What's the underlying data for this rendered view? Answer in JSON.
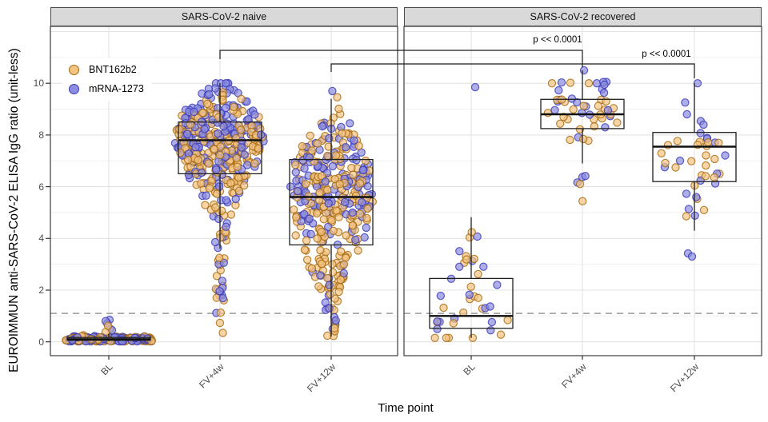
{
  "figure": {
    "y_axis": {
      "title": "EUROIMMUN anti-SARS-CoV-2 ELISA IgG ratio (unit-less)",
      "ticks": [
        "0",
        "2",
        "4",
        "6",
        "8",
        "10"
      ]
    },
    "x_axis": {
      "title": "Time point",
      "tick_labels": [
        "BL",
        "FV+4w",
        "FV+12w",
        "BL",
        "FV+4w",
        "FV+12w"
      ]
    },
    "legend": {
      "items": [
        {
          "label": "BNT162b2",
          "fill": "#F3C382",
          "stroke": "#A5690F"
        },
        {
          "label": "mRNA-1273",
          "fill": "#8C8CE0",
          "stroke": "#3A3AB5"
        }
      ]
    },
    "annotations": [
      {
        "text": "p << 0.0001"
      },
      {
        "text": "p << 0.0001"
      }
    ],
    "panel_titles": [
      "SARS-CoV-2 naive",
      "SARS-CoV-2 recovered"
    ]
  },
  "chart_data": {
    "type": "boxplot-beeswarm",
    "categories": [
      "BL",
      "FV+4w",
      "FV+12w"
    ],
    "xlabel": "Time point",
    "ylabel": "EUROIMMUN anti-SARS-CoV-2 ELISA IgG ratio (unit-less)",
    "ylim": [
      -0.5,
      12.2
    ],
    "yticks": [
      0,
      2,
      4,
      6,
      8,
      10
    ],
    "grid": "major-and-minor",
    "legend_position": "inside-top-left",
    "threshold_line": {
      "value": 1.1,
      "style": "dashed",
      "color": "#999999"
    },
    "significance": [
      {
        "text": "p << 0.0001",
        "category": "FV+4w",
        "from_panel": "SARS-CoV-2 naive",
        "to_panel": "SARS-CoV-2 recovered"
      },
      {
        "text": "p << 0.0001",
        "category": "FV+12w",
        "from_panel": "SARS-CoV-2 naive",
        "to_panel": "SARS-CoV-2 recovered"
      }
    ],
    "panels": [
      {
        "title": "SARS-CoV-2 naive",
        "groups": [
          {
            "category": "BL",
            "box": {
              "whisker_low": 0.02,
              "q1": 0.06,
              "median": 0.1,
              "q3": 0.17,
              "whisker_high": 0.3
            },
            "series": [
              {
                "name": "BNT162b2",
                "n": 150,
                "mix": [
                  {
                    "type": "normal",
                    "mean": 0.1,
                    "sd": 0.055,
                    "weight": 1.0
                  }
                ],
                "clamp": [
                  0.02,
                  0.3
                ]
              },
              {
                "name": "mRNA-1273",
                "n": 120,
                "mix": [
                  {
                    "type": "normal",
                    "mean": 0.1,
                    "sd": 0.055,
                    "weight": 1.0
                  }
                ],
                "clamp": [
                  0.02,
                  0.3
                ]
              }
            ],
            "extra_points": [
              {
                "value": 0.38,
                "series": "BNT162b2",
                "dx": -4
              },
              {
                "value": 0.5,
                "series": "BNT162b2",
                "dx": 2
              },
              {
                "value": 0.62,
                "series": "BNT162b2",
                "dx": -1
              },
              {
                "value": 0.45,
                "series": "mRNA-1273",
                "dx": 4
              },
              {
                "value": 0.72,
                "series": "mRNA-1273",
                "dx": -2
              },
              {
                "value": 0.8,
                "series": "mRNA-1273",
                "dx": -4
              },
              {
                "value": 0.85,
                "series": "mRNA-1273",
                "dx": 1
              }
            ],
            "swarm_width": [
              [
                0,
                55
              ],
              [
                0.3,
                50
              ],
              [
                0.35,
                10
              ],
              [
                0.9,
                5
              ]
            ]
          },
          {
            "category": "FV+4w",
            "box": {
              "whisker_low": 3.6,
              "q1": 6.5,
              "median": 7.8,
              "q3": 8.5,
              "whisker_high": 10.0
            },
            "series": [
              {
                "name": "BNT162b2",
                "n": 230,
                "mix": [
                  {
                    "type": "normal",
                    "mean": 7.55,
                    "sd": 0.9,
                    "weight": 0.8
                  },
                  {
                    "type": "normal",
                    "mean": 5.8,
                    "sd": 1.0,
                    "weight": 0.13
                  },
                  {
                    "type": "uniform",
                    "min": 0.3,
                    "max": 4.8,
                    "weight": 0.07
                  }
                ],
                "clamp": [
                  0.3,
                  10.0
                ]
              },
              {
                "name": "mRNA-1273",
                "n": 200,
                "mix": [
                  {
                    "type": "normal",
                    "mean": 8.1,
                    "sd": 0.95,
                    "weight": 0.84
                  },
                  {
                    "type": "normal",
                    "mean": 6.2,
                    "sd": 1.0,
                    "weight": 0.11
                  },
                  {
                    "type": "uniform",
                    "min": 0.85,
                    "max": 5.0,
                    "weight": 0.05
                  }
                ],
                "clamp": [
                  0.85,
                  10.0
                ]
              }
            ],
            "extra_points": [],
            "swarm_width": [
              [
                0.3,
                4
              ],
              [
                3,
                6
              ],
              [
                4.5,
                10
              ],
              [
                5.5,
                22
              ],
              [
                6.5,
                42
              ],
              [
                7.8,
                58
              ],
              [
                8.8,
                50
              ],
              [
                9.4,
                32
              ],
              [
                9.8,
                16
              ],
              [
                10,
                11
              ]
            ]
          },
          {
            "category": "FV+12w",
            "box": {
              "whisker_low": 0.2,
              "q1": 3.75,
              "median": 5.6,
              "q3": 7.05,
              "whisker_high": 9.4
            },
            "series": [
              {
                "name": "BNT162b2",
                "n": 235,
                "mix": [
                  {
                    "type": "normal",
                    "mean": 5.3,
                    "sd": 1.5,
                    "weight": 0.82
                  },
                  {
                    "type": "normal",
                    "mean": 7.4,
                    "sd": 0.7,
                    "weight": 0.08
                  },
                  {
                    "type": "uniform",
                    "min": 0.2,
                    "max": 2.8,
                    "weight": 0.1
                  }
                ],
                "clamp": [
                  0.1,
                  9.6
                ]
              },
              {
                "name": "mRNA-1273",
                "n": 150,
                "mix": [
                  {
                    "type": "normal",
                    "mean": 6.1,
                    "sd": 1.35,
                    "weight": 0.88
                  },
                  {
                    "type": "uniform",
                    "min": 0.5,
                    "max": 3.0,
                    "weight": 0.12
                  }
                ],
                "clamp": [
                  0.2,
                  9.7
                ]
              }
            ],
            "extra_points": [],
            "swarm_width": [
              [
                0.1,
                5
              ],
              [
                1,
                7
              ],
              [
                2,
                14
              ],
              [
                3,
                30
              ],
              [
                4,
                44
              ],
              [
                5,
                52
              ],
              [
                6,
                52
              ],
              [
                7,
                46
              ],
              [
                7.8,
                34
              ],
              [
                8.6,
                22
              ],
              [
                9.2,
                12
              ],
              [
                9.7,
                5
              ]
            ]
          }
        ]
      },
      {
        "title": "SARS-CoV-2 recovered",
        "groups": [
          {
            "category": "BL",
            "box": {
              "whisker_low": 0.15,
              "q1": 0.52,
              "median": 1.0,
              "q3": 2.45,
              "whisker_high": 4.82
            },
            "series": [
              {
                "name": "BNT162b2",
                "n": 22,
                "mix": [
                  {
                    "type": "normal",
                    "mean": 1.1,
                    "sd": 0.6,
                    "weight": 0.72
                  },
                  {
                    "type": "normal",
                    "mean": 3.1,
                    "sd": 0.7,
                    "weight": 0.28
                  }
                ],
                "clamp": [
                  0.15,
                  4.85
                ]
              },
              {
                "name": "mRNA-1273",
                "n": 17,
                "mix": [
                  {
                    "type": "normal",
                    "mean": 1.2,
                    "sd": 0.7,
                    "weight": 0.7
                  },
                  {
                    "type": "normal",
                    "mean": 3.5,
                    "sd": 0.7,
                    "weight": 0.3
                  }
                ],
                "clamp": [
                  0.2,
                  4.5
                ]
              }
            ],
            "extra_points": [
              {
                "value": 9.85,
                "series": "mRNA-1273",
                "dx": 5
              }
            ],
            "swarm_width": [
              [
                0.15,
                48
              ],
              [
                1,
                48
              ],
              [
                1.8,
                42
              ],
              [
                2.5,
                30
              ],
              [
                3,
                22
              ],
              [
                3.7,
                14
              ],
              [
                4.3,
                8
              ],
              [
                4.9,
                3
              ],
              [
                9.85,
                4
              ]
            ]
          },
          {
            "category": "FV+4w",
            "box": {
              "whisker_low": 6.9,
              "q1": 8.25,
              "median": 8.8,
              "q3": 9.38,
              "whisker_high": 10.5
            },
            "series": [
              {
                "name": "BNT162b2",
                "n": 26,
                "mix": [
                  {
                    "type": "normal",
                    "mean": 8.75,
                    "sd": 0.5,
                    "weight": 0.92
                  },
                  {
                    "type": "uniform",
                    "min": 4.6,
                    "max": 6.2,
                    "weight": 0.08
                  }
                ],
                "clamp": [
                  4.6,
                  10.05
                ]
              },
              {
                "name": "mRNA-1273",
                "n": 20,
                "mix": [
                  {
                    "type": "normal",
                    "mean": 8.95,
                    "sd": 0.6,
                    "weight": 0.9
                  },
                  {
                    "type": "uniform",
                    "min": 6.0,
                    "max": 7.3,
                    "weight": 0.1
                  }
                ],
                "clamp": [
                  6.0,
                  10.05
                ]
              }
            ],
            "extra_points": [
              {
                "value": 10.5,
                "series": "mRNA-1273",
                "dx": 2
              },
              {
                "value": 10.0,
                "series": "BNT162b2",
                "dx": -38
              },
              {
                "value": 10.02,
                "series": "BNT162b2",
                "dx": -15
              },
              {
                "value": 10.0,
                "series": "BNT162b2",
                "dx": 8
              },
              {
                "value": 10.03,
                "series": "mRNA-1273",
                "dx": -26
              },
              {
                "value": 10.0,
                "series": "mRNA-1273",
                "dx": 18
              },
              {
                "value": 10.05,
                "series": "mRNA-1273",
                "dx": 30
              }
            ],
            "swarm_width": [
              [
                4.6,
                4
              ],
              [
                6.5,
                8
              ],
              [
                7.5,
                12
              ],
              [
                8.1,
                38
              ],
              [
                8.8,
                48
              ],
              [
                9.4,
                38
              ],
              [
                10,
                30
              ],
              [
                10.5,
                4
              ]
            ]
          },
          {
            "category": "FV+12w",
            "box": {
              "whisker_low": 4.3,
              "q1": 6.2,
              "median": 7.55,
              "q3": 8.1,
              "whisker_high": 10.0
            },
            "series": [
              {
                "name": "BNT162b2",
                "n": 22,
                "mix": [
                  {
                    "type": "normal",
                    "mean": 7.3,
                    "sd": 1.0,
                    "weight": 0.9
                  },
                  {
                    "type": "uniform",
                    "min": 4.4,
                    "max": 5.6,
                    "weight": 0.1
                  }
                ],
                "clamp": [
                  4.4,
                  9.5
                ]
              },
              {
                "name": "mRNA-1273",
                "n": 18,
                "mix": [
                  {
                    "type": "normal",
                    "mean": 7.6,
                    "sd": 1.1,
                    "weight": 0.9
                  },
                  {
                    "type": "uniform",
                    "min": 4.8,
                    "max": 6.0,
                    "weight": 0.1
                  }
                ],
                "clamp": [
                  3.3,
                  10.0
                ]
              }
            ],
            "extra_points": [
              {
                "value": 3.42,
                "series": "mRNA-1273",
                "dx": -8
              },
              {
                "value": 3.3,
                "series": "mRNA-1273",
                "dx": -3
              },
              {
                "value": 10.0,
                "series": "mRNA-1273",
                "dx": 4
              }
            ],
            "swarm_width": [
              [
                3.2,
                6
              ],
              [
                4.5,
                10
              ],
              [
                5.5,
                16
              ],
              [
                6.3,
                30
              ],
              [
                7.3,
                46
              ],
              [
                8,
                38
              ],
              [
                8.8,
                24
              ],
              [
                9.4,
                14
              ],
              [
                10,
                5
              ]
            ]
          }
        ]
      }
    ]
  }
}
